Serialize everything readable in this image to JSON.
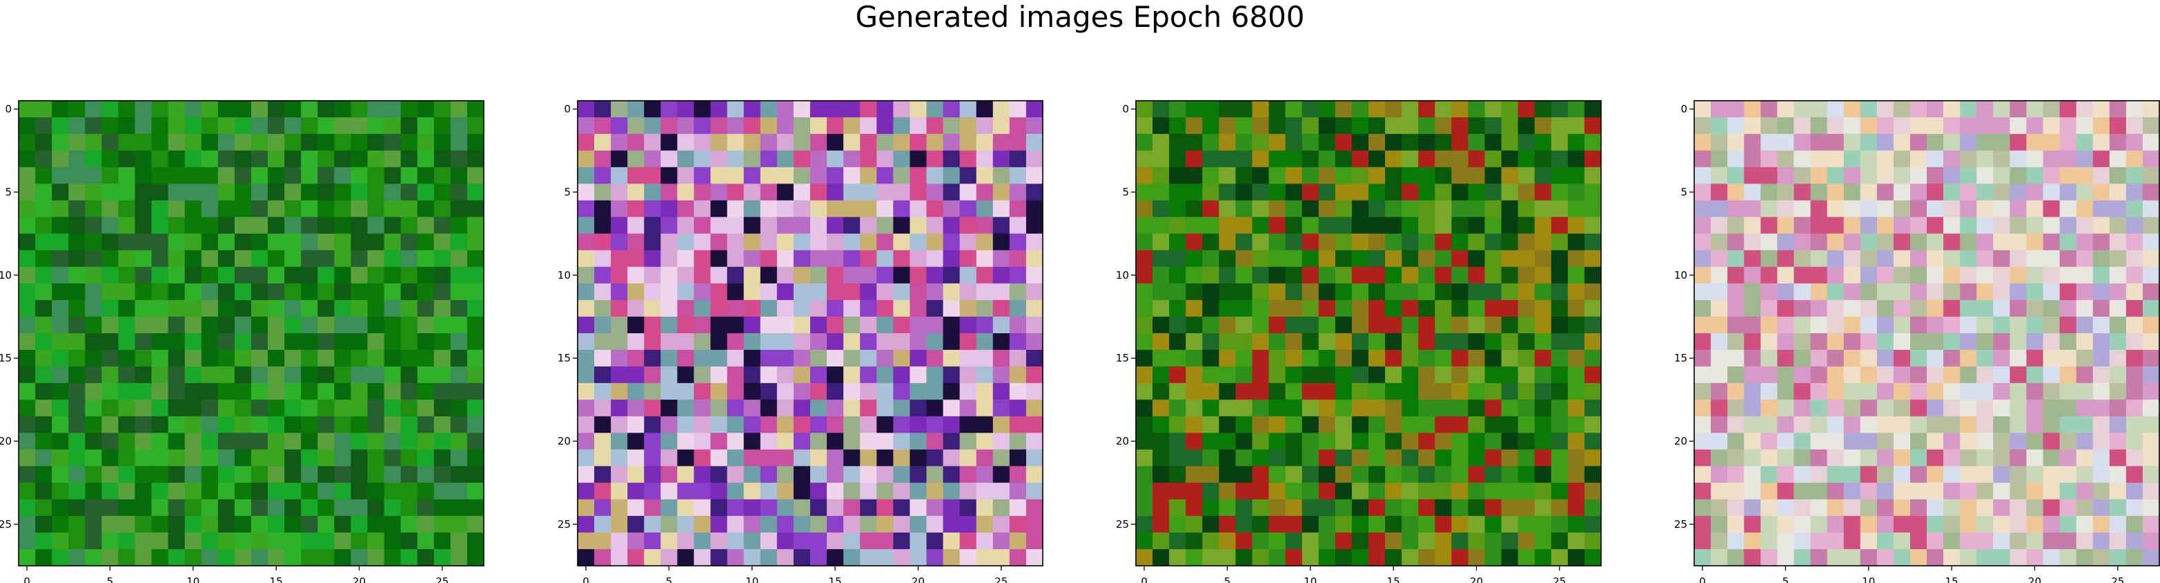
{
  "title": "Generated images Epoch 6800",
  "chart_data": [
    {
      "type": "heatmap",
      "title": "",
      "xlabel": "",
      "ylabel": "",
      "grid_size": [
        28,
        28
      ],
      "xlim": [
        -0.5,
        27.5
      ],
      "ylim": [
        27.5,
        -0.5
      ],
      "xticks": [
        "0",
        "5",
        "10",
        "15",
        "20",
        "25"
      ],
      "yticks": [
        "0",
        "5",
        "10",
        "15",
        "20",
        "25"
      ],
      "palette": [
        "#0b7a06",
        "#1f8f10",
        "#3aa51e",
        "#066b0a",
        "#2fb12a",
        "#5aa03c",
        "#0f5a14",
        "#3d8f5a",
        "#18a82a",
        "#26602e"
      ],
      "seed": 11
    },
    {
      "type": "heatmap",
      "title": "",
      "xlabel": "",
      "ylabel": "",
      "grid_size": [
        28,
        28
      ],
      "xlim": [
        -0.5,
        27.5
      ],
      "ylim": [
        27.5,
        -0.5
      ],
      "xticks": [
        "0",
        "5",
        "10",
        "15",
        "20",
        "25"
      ],
      "yticks": [
        "0",
        "5",
        "10",
        "15",
        "20",
        "25"
      ],
      "palette": [
        "#d8a7d6",
        "#b86cc4",
        "#e6c3e8",
        "#7a2cb8",
        "#c94fa0",
        "#3b1f7a",
        "#e8d9a8",
        "#6fa0a8",
        "#9ab08a",
        "#d44a8c",
        "#1a0f3a",
        "#f0d6ec",
        "#8c3fc9",
        "#a8c0d8",
        "#c8b070"
      ],
      "seed": 23
    },
    {
      "type": "heatmap",
      "title": "",
      "xlabel": "",
      "ylabel": "",
      "grid_size": [
        28,
        28
      ],
      "xlim": [
        -0.5,
        27.5
      ],
      "ylim": [
        27.5,
        -0.5
      ],
      "xticks": [
        "0",
        "5",
        "10",
        "15",
        "20",
        "25"
      ],
      "yticks": [
        "0",
        "5",
        "10",
        "15",
        "20",
        "25"
      ],
      "palette": [
        "#0a7a06",
        "#2e8f1a",
        "#5a9a14",
        "#0b5a0a",
        "#7aa82a",
        "#a08a10",
        "#1c6a2a",
        "#3fa018",
        "#8c7a1a",
        "#b0201a",
        "#064010"
      ],
      "seed": 37
    },
    {
      "type": "heatmap",
      "title": "",
      "xlabel": "",
      "ylabel": "",
      "grid_size": [
        28,
        28
      ],
      "xlim": [
        -0.5,
        27.5
      ],
      "ylim": [
        27.5,
        -0.5
      ],
      "xticks": [
        "0",
        "5",
        "10",
        "15",
        "20",
        "25"
      ],
      "yticks": [
        "0",
        "5",
        "10",
        "15",
        "20",
        "25"
      ],
      "palette": [
        "#e8d2d8",
        "#d89ac8",
        "#c8d8b8",
        "#f0e0c8",
        "#e6b0d0",
        "#b8c0a0",
        "#d8e0f0",
        "#a0b890",
        "#f0c898",
        "#c87aa8",
        "#e8e8e0",
        "#9ad0b8",
        "#d05080",
        "#b0a8d8"
      ],
      "seed": 53
    }
  ]
}
